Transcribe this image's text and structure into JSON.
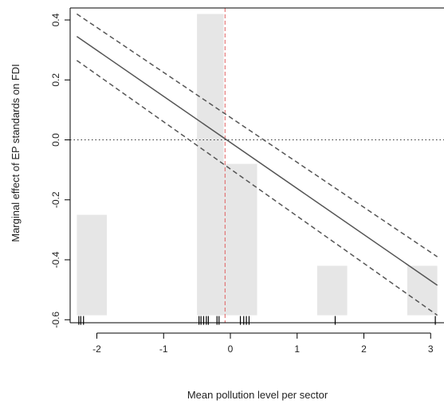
{
  "chart_data": {
    "type": "line",
    "xlabel": "Mean pollution level per sector",
    "ylabel": "Marginal effect of EP standards on FDI",
    "xlim": [
      -2.4,
      3.2
    ],
    "ylim": [
      -0.61,
      0.44
    ],
    "x_ticks": [
      -2,
      -1,
      0,
      1,
      2,
      3
    ],
    "x_tick_labels": [
      "-2",
      "-1",
      "0",
      "1",
      "2",
      "3"
    ],
    "y_ticks": [
      -0.6,
      -0.4,
      -0.2,
      0.0,
      0.2,
      0.4
    ],
    "y_tick_labels": [
      "-0.6",
      "-0.4",
      "-0.2",
      "0.0",
      "0.2",
      "0.4"
    ],
    "histogram_baseline": -0.585,
    "histogram_bars": [
      {
        "x0": -2.3,
        "x1": -1.85,
        "top": -0.25
      },
      {
        "x0": -0.5,
        "x1": -0.1,
        "top": 0.42
      },
      {
        "x0": -0.1,
        "x1": 0.4,
        "top": -0.08
      },
      {
        "x0": 1.3,
        "x1": 1.75,
        "top": -0.42
      },
      {
        "x0": 2.65,
        "x1": 3.1,
        "top": -0.42
      }
    ],
    "marginal_effect": {
      "x": [
        -2.3,
        3.1
      ],
      "y": [
        0.345,
        -0.485
      ]
    },
    "ci_upper": {
      "x": [
        -2.3,
        3.1
      ],
      "y": [
        0.42,
        -0.39
      ]
    },
    "ci_lower": {
      "x": [
        -2.3,
        3.1
      ],
      "y": [
        0.265,
        -0.585
      ]
    },
    "zero_reference_y": 0.0,
    "vertical_reference_x": -0.08,
    "rug_x": [
      -2.27,
      -2.24,
      -2.2,
      -0.47,
      -0.44,
      -0.4,
      -0.36,
      -0.33,
      -0.2,
      -0.17,
      0.15,
      0.2,
      0.24,
      0.28,
      1.57,
      3.07
    ],
    "colors": {
      "bars": "#e6e6e6",
      "line": "#555555",
      "ci": "#555555",
      "zero_line": "#333333",
      "vertical_line": "#e06060",
      "axis": "#000000"
    }
  }
}
